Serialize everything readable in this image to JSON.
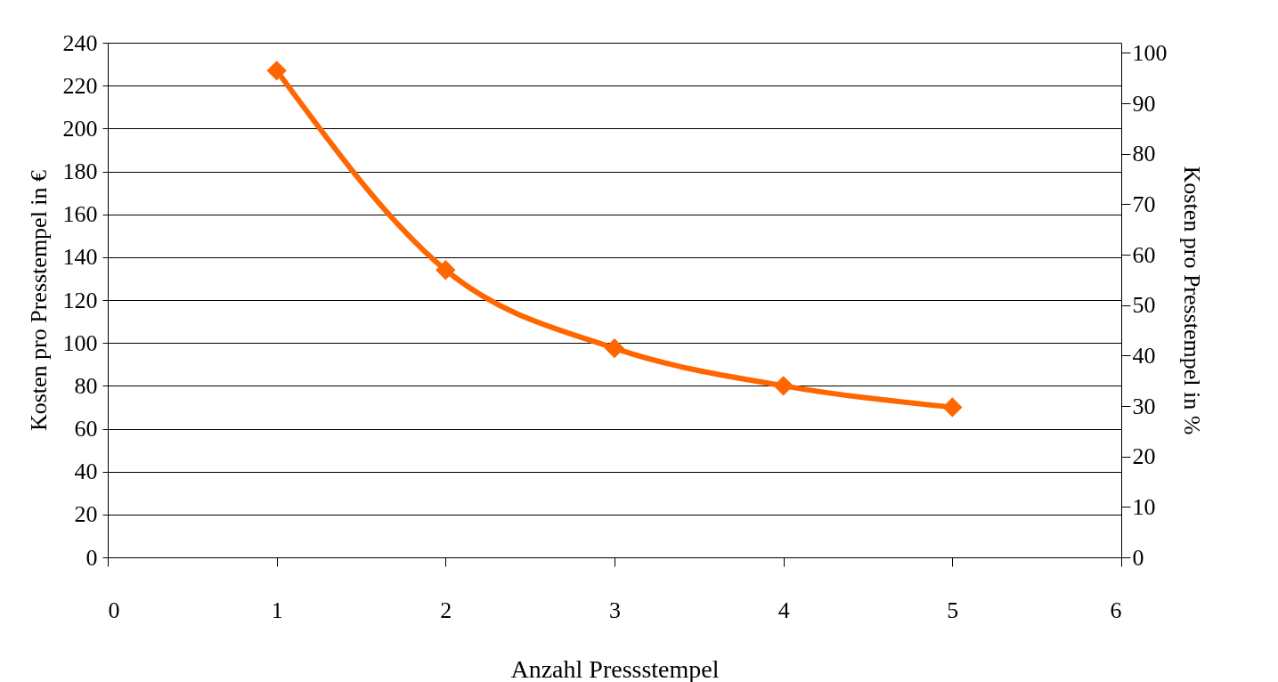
{
  "chart_data": {
    "type": "line",
    "xlabel": "Anzahl Pressstempel",
    "ylabel": "Kosten pro Presstempel in €",
    "y2label": "Kosten pro Presstempel in %",
    "x": [
      1,
      2,
      3,
      4,
      5
    ],
    "series": [
      {
        "color": "#ff6600",
        "values": [
          227,
          134,
          97.5,
          80,
          70
        ]
      }
    ],
    "xlim": [
      0,
      6
    ],
    "xticks": [
      0,
      1,
      2,
      3,
      4,
      5,
      6
    ],
    "ylim": [
      0,
      240
    ],
    "yticks": [
      0,
      20,
      40,
      60,
      80,
      100,
      120,
      140,
      160,
      180,
      200,
      220,
      240
    ],
    "y2lim": [
      0,
      102
    ],
    "y2ticks": [
      0,
      10,
      20,
      30,
      40,
      50,
      60,
      70,
      80,
      90,
      100
    ],
    "grid": "y",
    "marker": "diamond",
    "line_style": "solid"
  }
}
